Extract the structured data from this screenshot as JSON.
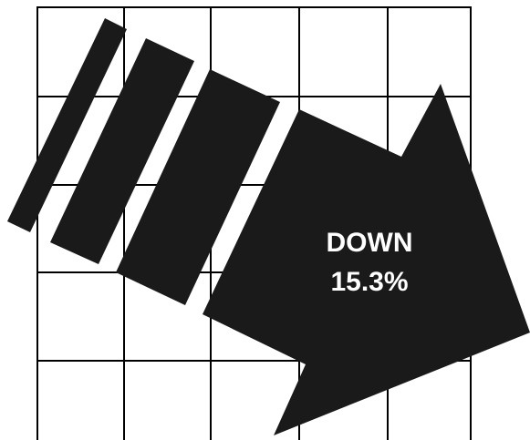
{
  "label": {
    "line1": "DOWN",
    "line2": "15.3%"
  }
}
